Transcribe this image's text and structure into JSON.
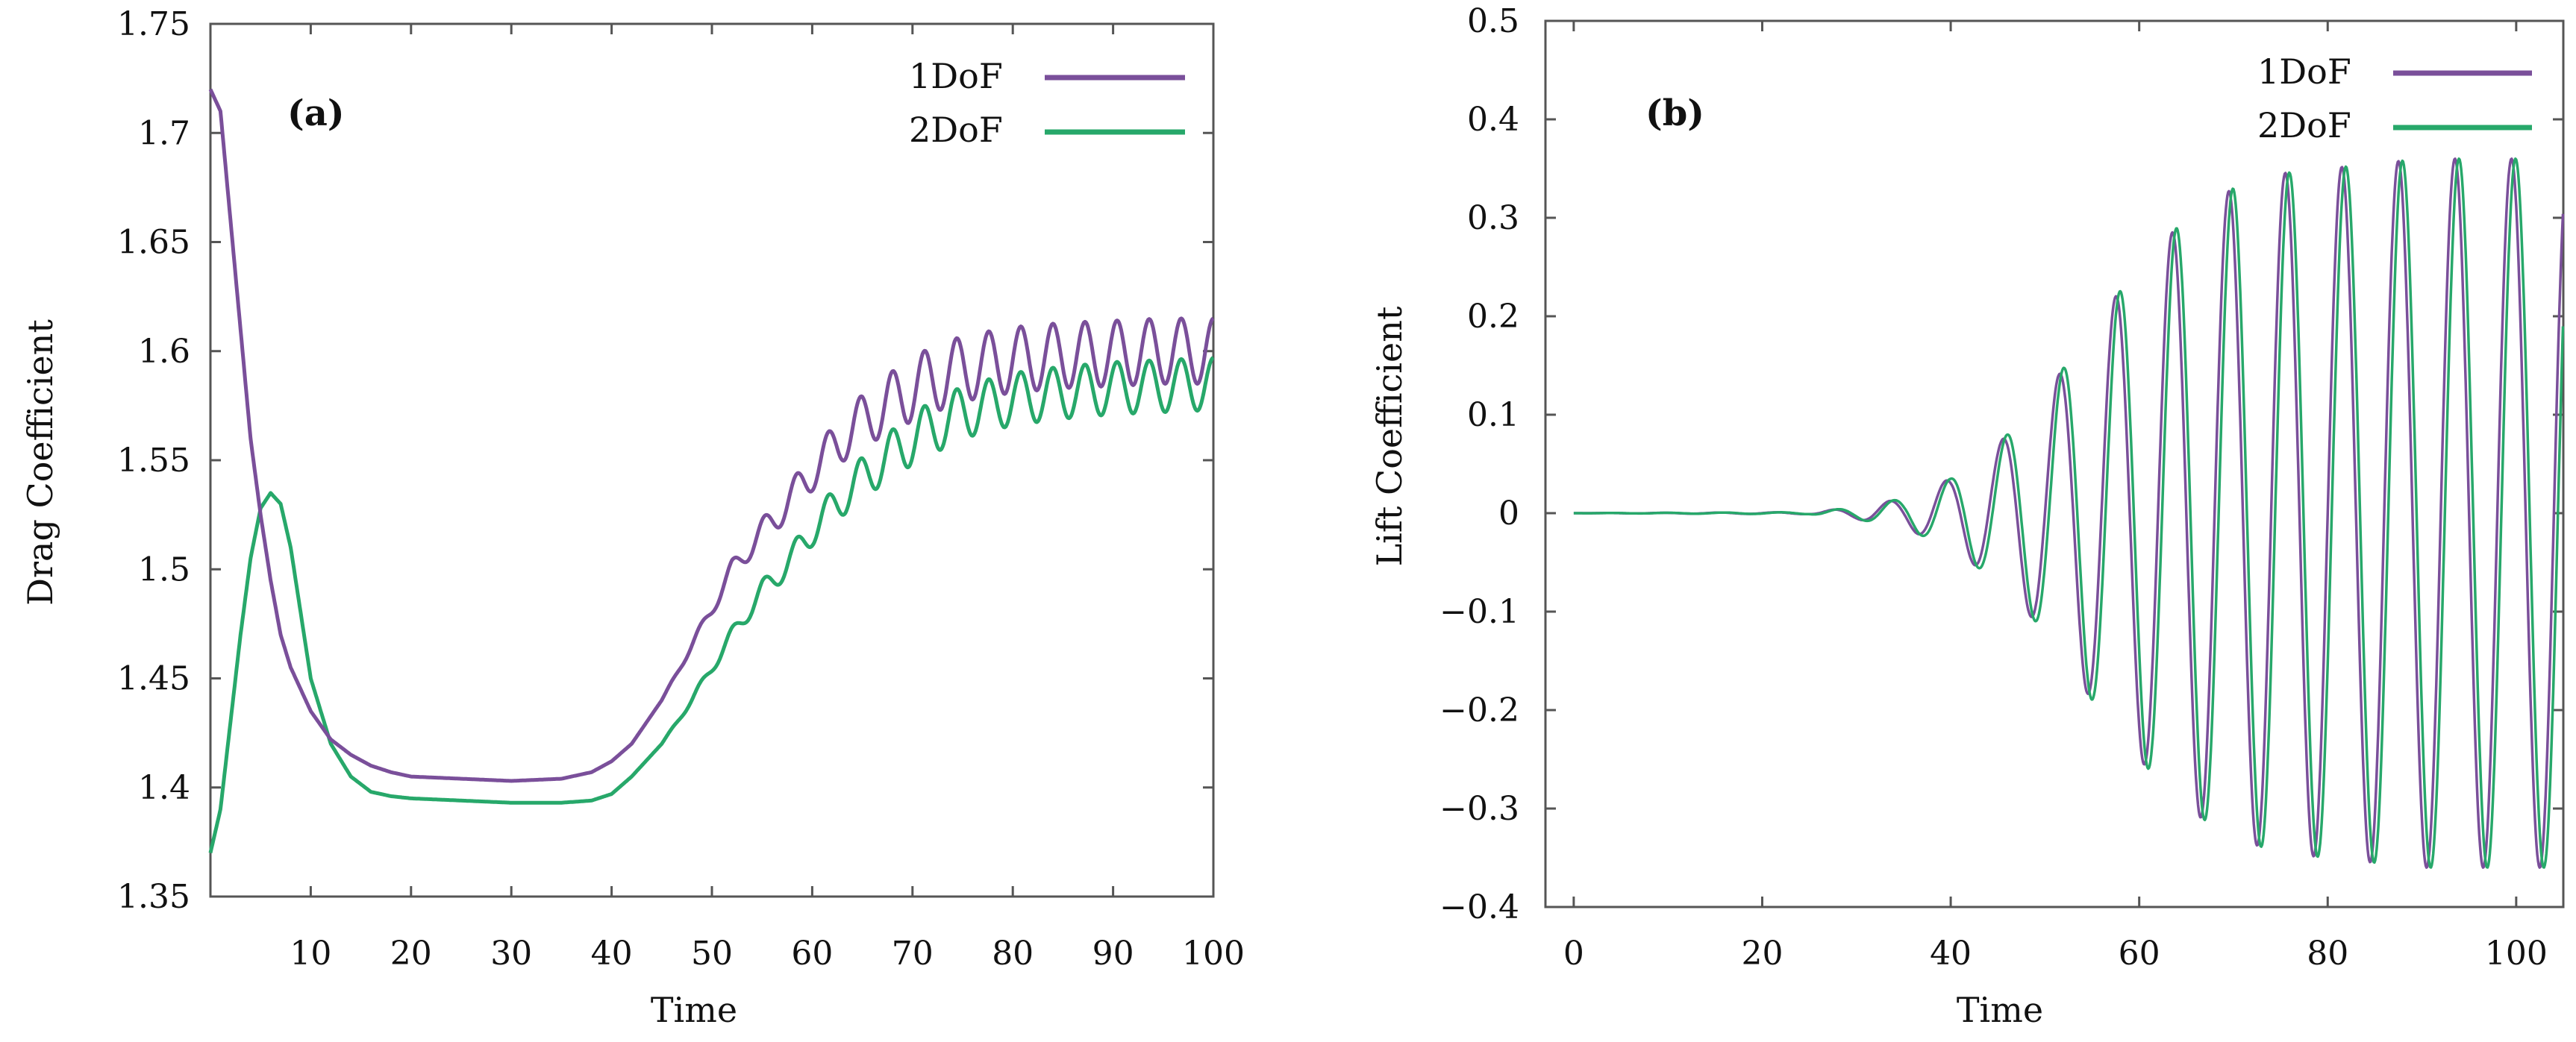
{
  "colors": {
    "series_1dof": "#7a4f9a",
    "series_2dof": "#27a86a",
    "axis": "#555555"
  },
  "chart_data": [
    {
      "type": "line",
      "panel_label": "(a)",
      "xlabel": "Time",
      "ylabel": "Drag Coefficient",
      "xlim": [
        0,
        100
      ],
      "ylim": [
        1.35,
        1.75
      ],
      "xticks": [
        10,
        20,
        30,
        40,
        50,
        60,
        70,
        80,
        90,
        100
      ],
      "yticks": [
        1.35,
        1.4,
        1.45,
        1.5,
        1.55,
        1.6,
        1.65,
        1.7,
        1.75
      ],
      "legend": [
        "1DoF",
        "2DoF"
      ],
      "series": [
        {
          "name": "1DoF",
          "x": [
            0,
            0.5,
            1,
            2,
            3,
            4,
            5,
            6,
            7,
            8,
            10,
            12,
            14,
            16,
            18,
            20,
            25,
            30,
            35,
            38,
            40,
            42,
            45,
            48,
            50,
            52,
            55,
            58,
            60,
            63,
            65,
            68,
            70,
            75,
            80,
            85,
            90,
            95,
            100
          ],
          "values": [
            1.72,
            1.715,
            1.71,
            1.66,
            1.61,
            1.56,
            1.525,
            1.495,
            1.47,
            1.455,
            1.435,
            1.422,
            1.415,
            1.41,
            1.407,
            1.405,
            1.404,
            1.403,
            1.404,
            1.407,
            1.412,
            1.42,
            1.44,
            1.465,
            1.482,
            1.5,
            1.517,
            1.533,
            1.545,
            1.56,
            1.568,
            1.577,
            1.583,
            1.592,
            1.596,
            1.598,
            1.599,
            1.6,
            1.6
          ],
          "oscillation_amplitude": 0.015,
          "oscillation_period": 3.2
        },
        {
          "name": "2DoF",
          "x": [
            0,
            1,
            2,
            3,
            4,
            5,
            6,
            7,
            8,
            9,
            10,
            12,
            14,
            16,
            18,
            20,
            25,
            30,
            35,
            38,
            40,
            42,
            45,
            48,
            50,
            52,
            55,
            58,
            60,
            63,
            65,
            68,
            70,
            75,
            80,
            85,
            90,
            95,
            100
          ],
          "values": [
            1.37,
            1.39,
            1.43,
            1.47,
            1.505,
            1.528,
            1.535,
            1.53,
            1.51,
            1.48,
            1.45,
            1.42,
            1.405,
            1.398,
            1.396,
            1.395,
            1.394,
            1.393,
            1.393,
            1.394,
            1.397,
            1.405,
            1.42,
            1.44,
            1.455,
            1.47,
            1.49,
            1.505,
            1.518,
            1.533,
            1.542,
            1.553,
            1.56,
            1.572,
            1.578,
            1.581,
            1.583,
            1.584,
            1.585
          ],
          "oscillation_amplitude": 0.012,
          "oscillation_period": 3.2
        }
      ]
    },
    {
      "type": "line",
      "panel_label": "(b)",
      "xlabel": "Time",
      "ylabel": "Lift Coefficient",
      "xlim": [
        -3,
        105
      ],
      "ylim": [
        -0.4,
        0.5
      ],
      "xticks": [
        0,
        20,
        40,
        60,
        80,
        100
      ],
      "yticks": [
        -0.4,
        -0.3,
        -0.2,
        -0.1,
        0,
        0.1,
        0.2,
        0.3,
        0.4,
        0.5
      ],
      "legend": [
        "1DoF",
        "2DoF"
      ],
      "series": [
        {
          "name": "1DoF",
          "envelope_x": [
            0,
            25,
            30,
            35,
            40,
            45,
            50,
            55,
            60,
            65,
            70,
            75,
            80,
            85,
            90,
            95,
            105
          ],
          "envelope_amplitude": [
            0,
            0.001,
            0.006,
            0.015,
            0.035,
            0.07,
            0.12,
            0.19,
            0.25,
            0.3,
            0.33,
            0.345,
            0.35,
            0.355,
            0.36,
            0.36,
            0.36
          ],
          "period": 6.0,
          "phase": 0.0
        },
        {
          "name": "2DoF",
          "envelope_x": [
            0,
            25,
            30,
            35,
            40,
            45,
            50,
            55,
            60,
            65,
            70,
            75,
            80,
            85,
            90,
            95,
            105
          ],
          "envelope_amplitude": [
            0,
            0.001,
            0.006,
            0.015,
            0.035,
            0.07,
            0.12,
            0.19,
            0.25,
            0.3,
            0.33,
            0.345,
            0.35,
            0.355,
            0.36,
            0.36,
            0.36
          ],
          "period": 6.0,
          "phase": 0.45
        }
      ]
    }
  ]
}
